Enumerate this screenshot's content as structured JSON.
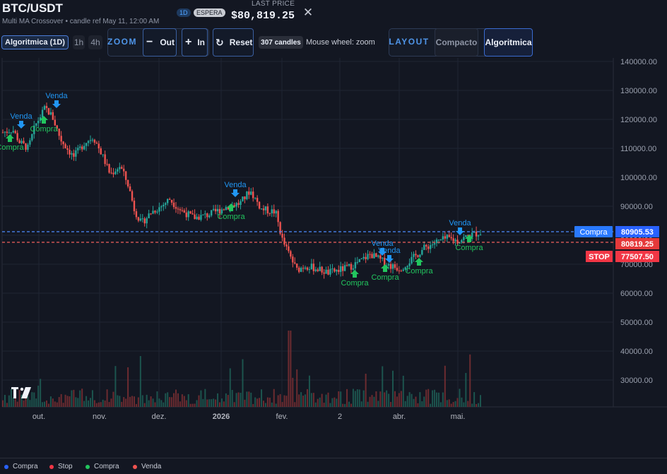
{
  "header": {
    "symbol": "BTC/USDT",
    "subtitle": "Multi MA Crossover • candle ref May 11, 12:00 AM",
    "timeframe_badge": "1D",
    "status_badge": "ESPERA",
    "last_price_label": "LAST PRICE",
    "last_price": "$80,819.25"
  },
  "toolbar": {
    "mode_button": "Algoritmica (1D)",
    "tf_1h": "1h",
    "tf_4h": "4h",
    "zoom_label": "ZOOM",
    "zoom_out": "Out",
    "zoom_in": "In",
    "reset": "Reset",
    "candles_badge": "307 candles",
    "wheel_hint": "Mouse wheel: zoom",
    "layout_label": "LAYOUT",
    "layout_compact": "Compacto",
    "layout_algo": "Algoritmica"
  },
  "chart": {
    "price_ticks": [
      "140000.00",
      "130000.00",
      "120000.00",
      "110000.00",
      "100000.00",
      "90000.00",
      "80000.00",
      "70000.00",
      "60000.00",
      "50000.00",
      "40000.00",
      "30000.00"
    ],
    "time_ticks": [
      "out.",
      "nov.",
      "dez.",
      "2026",
      "fev.",
      "2",
      "abr.",
      "mai."
    ],
    "last_price_tag": "80819.25",
    "entry_label": "Compra",
    "entry_price": "80905.53",
    "stop_label": "STOP",
    "stop_price": "77507.50",
    "markers": [
      {
        "type": "venda",
        "text": "Venda"
      },
      {
        "type": "venda",
        "text": "Venda"
      },
      {
        "type": "venda",
        "text": "Venda"
      },
      {
        "type": "venda",
        "text": "Venda"
      },
      {
        "type": "venda",
        "text": "Venda"
      },
      {
        "type": "venda",
        "text": "Venda"
      },
      {
        "type": "compra",
        "text": "Compra"
      },
      {
        "type": "compra",
        "text": "Compra"
      },
      {
        "type": "compra",
        "text": "Compra"
      },
      {
        "type": "compra",
        "text": "Compra"
      },
      {
        "type": "compra",
        "text": "Compra"
      },
      {
        "type": "compra",
        "text": "Compra"
      },
      {
        "type": "compra",
        "text": "Compra"
      }
    ],
    "colors": {
      "up": "#26a69a",
      "down": "#ef5350",
      "buy": "#22c55e",
      "sell": "#2196f3",
      "entry": "#2962ff",
      "stop": "#f23645"
    }
  },
  "legend": [
    {
      "label": "Compra",
      "color": "#2962ff"
    },
    {
      "label": "Stop",
      "color": "#f23645"
    },
    {
      "label": "Compra",
      "color": "#22c55e"
    },
    {
      "label": "Venda",
      "color": "#ef5350"
    }
  ]
}
